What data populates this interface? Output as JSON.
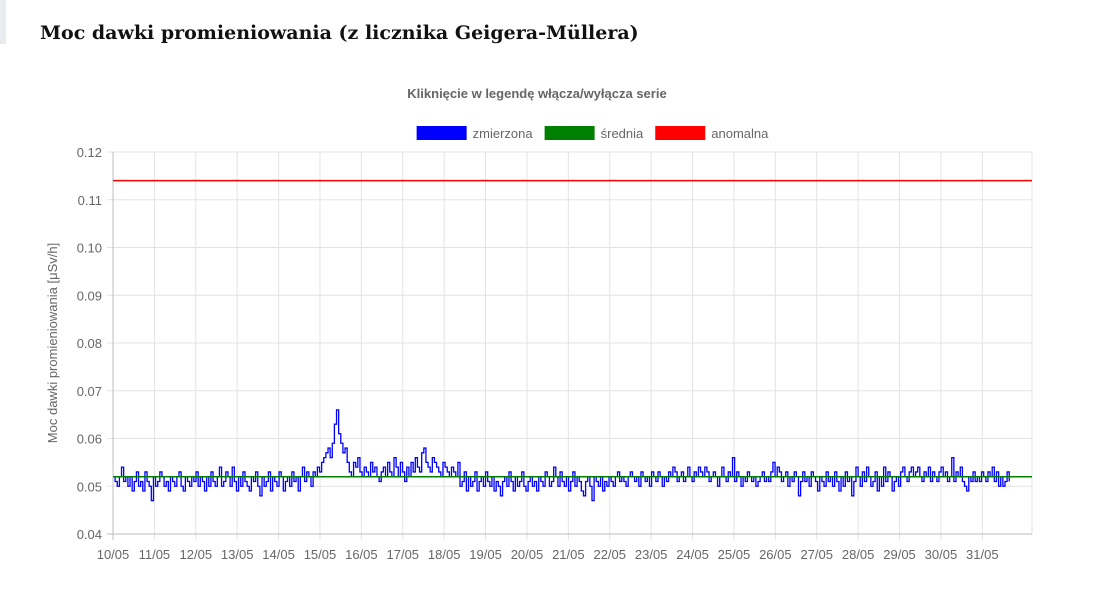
{
  "page": {
    "title": "Moc dawki promieniowania (z licznika Geigera-Müllera)"
  },
  "chart_data": {
    "type": "line",
    "title": "Kliknięcie w legendę włącza/wyłącza serie",
    "xlabel": "",
    "ylabel": "Moc dawki promieniowania [μSv/h]",
    "ylim": [
      0.04,
      0.12
    ],
    "y_ticks": [
      "0.12",
      "0.11",
      "0.10",
      "0.09",
      "0.08",
      "0.07",
      "0.06",
      "0.05",
      "0.04"
    ],
    "x_ticks": [
      "10/05",
      "11/05",
      "12/05",
      "13/05",
      "14/05",
      "15/05",
      "16/05",
      "17/05",
      "18/05",
      "19/05",
      "20/05",
      "21/05",
      "22/05",
      "23/05",
      "24/05",
      "25/05",
      "26/05",
      "27/05",
      "28/05",
      "29/05",
      "30/05",
      "31/05"
    ],
    "x_range_days": [
      0,
      22.2
    ],
    "grid": true,
    "legend_position": "top",
    "series": [
      {
        "name": "zmierzona",
        "color": "#0000ff",
        "step": true,
        "values": [
          0.052,
          0.051,
          0.05,
          0.052,
          0.054,
          0.051,
          0.052,
          0.05,
          0.052,
          0.049,
          0.051,
          0.053,
          0.05,
          0.051,
          0.049,
          0.053,
          0.051,
          0.05,
          0.047,
          0.052,
          0.05,
          0.051,
          0.053,
          0.052,
          0.05,
          0.051,
          0.049,
          0.052,
          0.051,
          0.05,
          0.052,
          0.053,
          0.05,
          0.049,
          0.052,
          0.051,
          0.05,
          0.052,
          0.051,
          0.053,
          0.05,
          0.052,
          0.051,
          0.049,
          0.052,
          0.05,
          0.053,
          0.051,
          0.05,
          0.052,
          0.054,
          0.05,
          0.051,
          0.053,
          0.052,
          0.05,
          0.054,
          0.051,
          0.049,
          0.052,
          0.05,
          0.053,
          0.051,
          0.05,
          0.049,
          0.052,
          0.051,
          0.053,
          0.05,
          0.048,
          0.052,
          0.05,
          0.051,
          0.053,
          0.049,
          0.052,
          0.051,
          0.05,
          0.053,
          0.052,
          0.049,
          0.051,
          0.052,
          0.05,
          0.053,
          0.051,
          0.052,
          0.049,
          0.052,
          0.054,
          0.051,
          0.053,
          0.052,
          0.05,
          0.053,
          0.052,
          0.054,
          0.053,
          0.055,
          0.056,
          0.057,
          0.058,
          0.056,
          0.059,
          0.063,
          0.066,
          0.061,
          0.059,
          0.057,
          0.058,
          0.055,
          0.053,
          0.052,
          0.055,
          0.054,
          0.056,
          0.053,
          0.052,
          0.054,
          0.053,
          0.052,
          0.055,
          0.053,
          0.054,
          0.052,
          0.051,
          0.053,
          0.054,
          0.052,
          0.055,
          0.053,
          0.052,
          0.056,
          0.054,
          0.052,
          0.055,
          0.053,
          0.051,
          0.054,
          0.052,
          0.055,
          0.053,
          0.056,
          0.054,
          0.053,
          0.057,
          0.058,
          0.055,
          0.054,
          0.053,
          0.056,
          0.055,
          0.054,
          0.053,
          0.052,
          0.055,
          0.054,
          0.053,
          0.052,
          0.054,
          0.053,
          0.052,
          0.055,
          0.05,
          0.051,
          0.053,
          0.049,
          0.052,
          0.05,
          0.051,
          0.053,
          0.049,
          0.051,
          0.052,
          0.05,
          0.053,
          0.051,
          0.05,
          0.052,
          0.049,
          0.051,
          0.05,
          0.048,
          0.051,
          0.052,
          0.05,
          0.053,
          0.051,
          0.049,
          0.052,
          0.05,
          0.051,
          0.053,
          0.05,
          0.049,
          0.051,
          0.052,
          0.05,
          0.051,
          0.049,
          0.052,
          0.051,
          0.05,
          0.053,
          0.052,
          0.05,
          0.051,
          0.054,
          0.052,
          0.05,
          0.053,
          0.051,
          0.05,
          0.052,
          0.049,
          0.051,
          0.053,
          0.05,
          0.052,
          0.051,
          0.049,
          0.048,
          0.051,
          0.052,
          0.05,
          0.047,
          0.052,
          0.051,
          0.05,
          0.052,
          0.049,
          0.051,
          0.05,
          0.052,
          0.051,
          0.05,
          0.052,
          0.053,
          0.051,
          0.052,
          0.051,
          0.05,
          0.052,
          0.053,
          0.052,
          0.051,
          0.052,
          0.05,
          0.053,
          0.052,
          0.051,
          0.052,
          0.05,
          0.053,
          0.052,
          0.051,
          0.053,
          0.052,
          0.05,
          0.052,
          0.051,
          0.053,
          0.052,
          0.054,
          0.053,
          0.051,
          0.052,
          0.053,
          0.051,
          0.052,
          0.054,
          0.052,
          0.051,
          0.053,
          0.052,
          0.054,
          0.053,
          0.052,
          0.054,
          0.053,
          0.051,
          0.052,
          0.053,
          0.052,
          0.05,
          0.052,
          0.054,
          0.052,
          0.051,
          0.053,
          0.052,
          0.056,
          0.051,
          0.053,
          0.052,
          0.05,
          0.052,
          0.051,
          0.053,
          0.052,
          0.051,
          0.052,
          0.05,
          0.051,
          0.052,
          0.053,
          0.051,
          0.052,
          0.051,
          0.053,
          0.055,
          0.052,
          0.054,
          0.053,
          0.051,
          0.052,
          0.053,
          0.05,
          0.052,
          0.051,
          0.053,
          0.052,
          0.048,
          0.051,
          0.053,
          0.051,
          0.052,
          0.05,
          0.053,
          0.052,
          0.051,
          0.049,
          0.052,
          0.051,
          0.05,
          0.053,
          0.051,
          0.052,
          0.05,
          0.053,
          0.051,
          0.049,
          0.052,
          0.05,
          0.053,
          0.051,
          0.052,
          0.048,
          0.051,
          0.054,
          0.052,
          0.05,
          0.053,
          0.051,
          0.054,
          0.052,
          0.05,
          0.051,
          0.053,
          0.049,
          0.052,
          0.05,
          0.054,
          0.051,
          0.053,
          0.052,
          0.049,
          0.051,
          0.052,
          0.05,
          0.053,
          0.054,
          0.052,
          0.051,
          0.053,
          0.054,
          0.052,
          0.053,
          0.054,
          0.052,
          0.051,
          0.053,
          0.052,
          0.054,
          0.051,
          0.053,
          0.052,
          0.051,
          0.053,
          0.054,
          0.052,
          0.053,
          0.051,
          0.052,
          0.056,
          0.051,
          0.053,
          0.052,
          0.054,
          0.051,
          0.05,
          0.049,
          0.052,
          0.051,
          0.053,
          0.051,
          0.052,
          0.051,
          0.053,
          0.052,
          0.051,
          0.053,
          0.052,
          0.054,
          0.051,
          0.053,
          0.05,
          0.052,
          0.05,
          0.051,
          0.053,
          0.051
        ]
      },
      {
        "name": "średnia",
        "color": "#008000",
        "values": [
          0.052
        ]
      },
      {
        "name": "anomalna",
        "color": "#ff0000",
        "values": [
          0.114
        ]
      }
    ]
  }
}
